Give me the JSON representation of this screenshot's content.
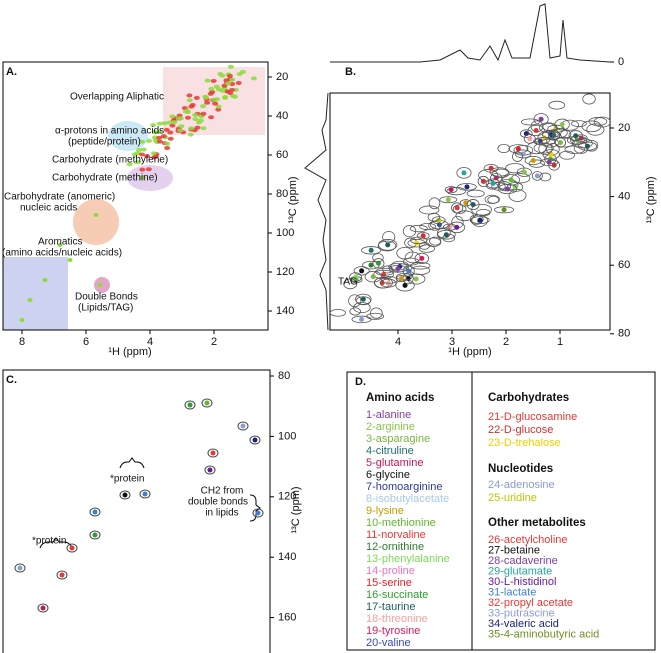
{
  "panels": {
    "A": {
      "label": "A.",
      "annotations": [
        "Overlapping Aliphatic",
        "α-protons  in amino acids",
        "(peptide/protein)",
        "Carbohydrate (methylene)",
        "Carbohydrate (methine)",
        "Carbohydrate (anomeric)",
        "nucleic acids",
        "Aromatics",
        "(amino acids/nucleic acids)",
        "Double Bonds",
        "(Lipids/TAG)"
      ],
      "x_title": "¹H (ppm)",
      "y_title": "¹³C (ppm)",
      "xticks": [
        8,
        6,
        4,
        2
      ],
      "yticks": [
        20,
        40,
        60,
        80,
        100,
        120,
        140
      ]
    },
    "B": {
      "label": "B.",
      "annotation": "TAG",
      "x_title": "¹H (ppm)",
      "y_title": "¹³C (ppm)",
      "xticks": [
        4,
        3,
        2,
        1
      ],
      "yticks": [
        20,
        40,
        60,
        80
      ],
      "top_yticks": [
        0
      ]
    },
    "C": {
      "label": "C.",
      "annotations": [
        "*protein",
        "*protein",
        "CH2 from",
        "double bonds",
        "in lipids"
      ],
      "y_title": "¹³C (ppm)",
      "yticks": [
        80,
        100,
        120,
        140,
        160
      ]
    },
    "D": {
      "label": "D.",
      "groups": [
        {
          "title": "Amino acids",
          "items": [
            {
              "name": "1-alanine",
              "color": "#7b3fa0"
            },
            {
              "name": "2-arginine",
              "color": "#8bc34a"
            },
            {
              "name": "3-asparagine",
              "color": "#7cb342"
            },
            {
              "name": "4-citruline",
              "color": "#1f6f6f"
            },
            {
              "name": "5-glutamine",
              "color": "#c2185b"
            },
            {
              "name": "6-glycine",
              "color": "#111111"
            },
            {
              "name": "7-homoarginine",
              "color": "#2a3a9a"
            },
            {
              "name": "8-isobutylacetate",
              "color": "#a8c8e8"
            },
            {
              "name": "9-lysine",
              "color": "#c89b00"
            },
            {
              "name": "10-methionine",
              "color": "#5fb830"
            },
            {
              "name": "11-norvaline",
              "color": "#e53935"
            },
            {
              "name": "12-ornithine",
              "color": "#2e7d32"
            },
            {
              "name": "13-phenylalanine",
              "color": "#7ed957"
            },
            {
              "name": "14-proline",
              "color": "#e377c2"
            },
            {
              "name": "15-serine",
              "color": "#e8202a"
            },
            {
              "name": "16-succinate",
              "color": "#2ca02c"
            },
            {
              "name": "17-taurine",
              "color": "#1b5e5e"
            },
            {
              "name": "18-threonine",
              "color": "#f4a0a0"
            },
            {
              "name": "19-tyrosine",
              "color": "#d81b60"
            },
            {
              "name": "20-valine",
              "color": "#3949ab"
            }
          ]
        },
        {
          "title": "Carbohydrates",
          "items": [
            {
              "name": "21-D-glucosamine",
              "color": "#e53935"
            },
            {
              "name": "22-D-glucose",
              "color": "#d32f2f"
            },
            {
              "name": "23-D-trehalose",
              "color": "#f0d000"
            }
          ]
        },
        {
          "title": "Nucleotides",
          "items": [
            {
              "name": "24-adenosine",
              "color": "#8c9ccf"
            },
            {
              "name": "25-uridine",
              "color": "#b8c800"
            }
          ]
        },
        {
          "title": "Other metabolites",
          "items": [
            {
              "name": "26-acetylcholine",
              "color": "#e53935"
            },
            {
              "name": "27-betaine",
              "color": "#111111"
            },
            {
              "name": "28-cadaverine",
              "color": "#7b3fa0"
            },
            {
              "name": "29-glutamate",
              "color": "#26a69a"
            },
            {
              "name": "30-L-histidinol",
              "color": "#6a1b9a"
            },
            {
              "name": "31-lactate",
              "color": "#3f7fd0"
            },
            {
              "name": "32-propyl acetate",
              "color": "#e53935"
            },
            {
              "name": "33-putrascine",
              "color": "#8c9ccf"
            },
            {
              "name": "34-valeric acid",
              "color": "#1a237e"
            },
            {
              "name": "35-4-aminobutyric acid",
              "color": "#6b8e23"
            }
          ]
        }
      ]
    }
  }
}
